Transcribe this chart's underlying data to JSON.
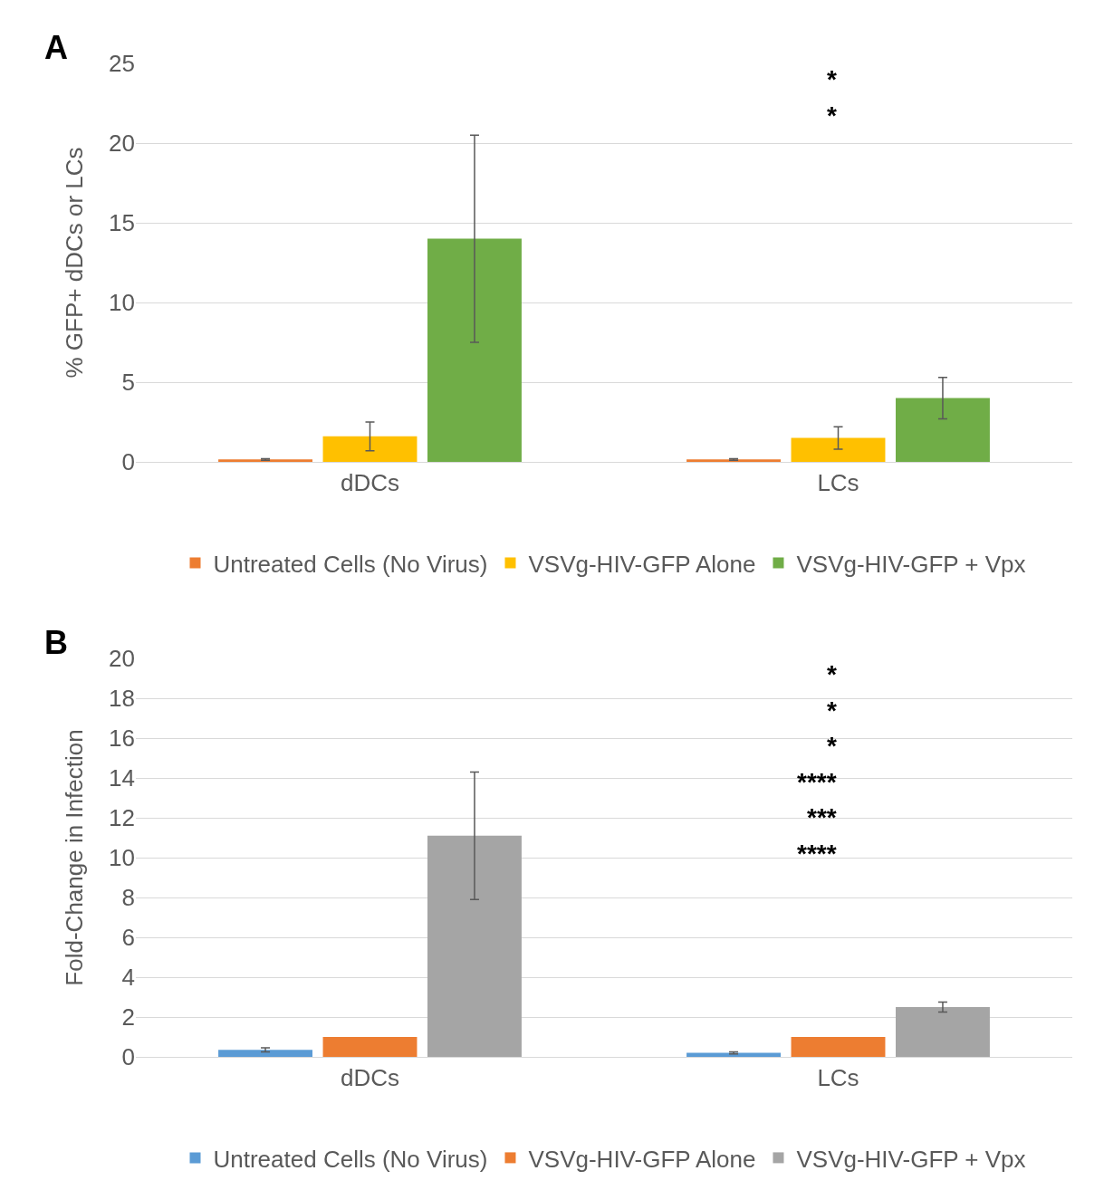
{
  "chart_data": [
    {
      "type": "bar",
      "ylabel": "% GFP+ dDCs or LCs",
      "categories": [
        "dDCs",
        "LCs"
      ],
      "ylim": [
        0,
        25
      ],
      "yticks": [
        0,
        5,
        10,
        15,
        20,
        25
      ],
      "grid": "y",
      "legend": "bottom",
      "series": [
        {
          "name": "Untreated Cells (No Virus)",
          "color": "#ed7d31",
          "values": [
            0.15,
            0.15
          ],
          "errors": [
            0.05,
            0.05
          ]
        },
        {
          "name": "VSVg-HIV-GFP Alone",
          "color": "#ffc000",
          "values": [
            1.6,
            1.5
          ],
          "errors": [
            0.9,
            0.7
          ]
        },
        {
          "name": "VSVg-HIV-GFP + Vpx",
          "color": "#70ad47",
          "values": [
            14,
            4
          ],
          "errors": [
            6.5,
            1.3
          ]
        }
      ],
      "annotations": [
        "A",
        "*",
        "*"
      ]
    },
    {
      "type": "bar",
      "ylabel": "Fold-Change in Infection",
      "categories": [
        "dDCs",
        "LCs"
      ],
      "ylim": [
        0,
        20
      ],
      "yticks": [
        0,
        2,
        4,
        6,
        8,
        10,
        12,
        14,
        16,
        18,
        20
      ],
      "grid": "y",
      "legend": "bottom",
      "series": [
        {
          "name": "Untreated Cells (No Virus)",
          "color": "#5b9bd5",
          "values": [
            0.35,
            0.2
          ],
          "errors": [
            0.1,
            0.05
          ]
        },
        {
          "name": "VSVg-HIV-GFP Alone",
          "color": "#ed7d31",
          "values": [
            1,
            1
          ]
        },
        {
          "name": "VSVg-HIV-GFP + Vpx",
          "color": "#a5a5a5",
          "values": [
            11.1,
            2.5
          ],
          "errors": [
            3.2,
            0.25
          ]
        }
      ],
      "annotations": [
        "B",
        "*",
        "*",
        "*",
        "****",
        "***",
        "****"
      ]
    }
  ]
}
